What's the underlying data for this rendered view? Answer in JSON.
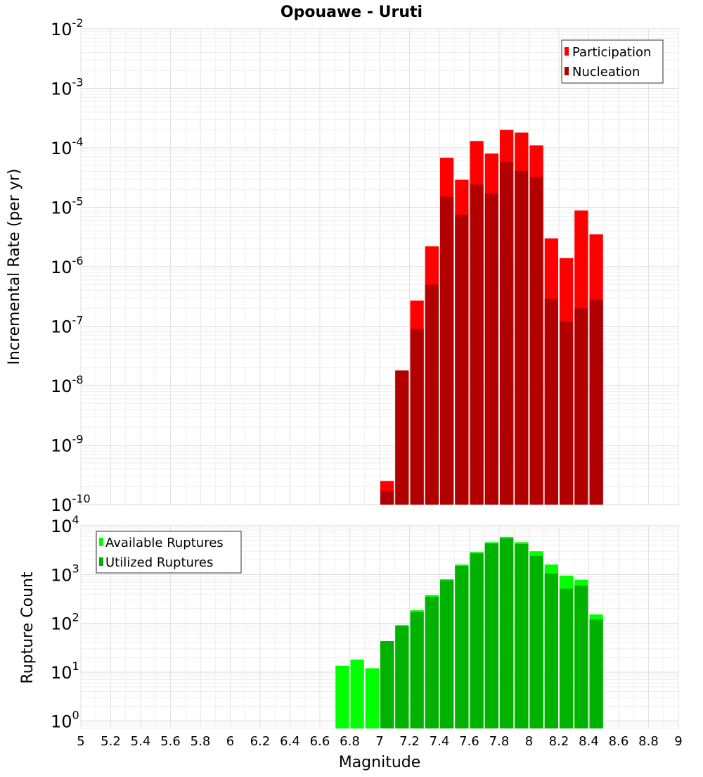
{
  "title": "Opouawe - Uruti",
  "colors": {
    "participation": "#ff0000",
    "nucleation": "#b20000",
    "available": "#00ff00",
    "utilized": "#00b200"
  },
  "chart_data": [
    {
      "type": "bar",
      "title": "Opouawe - Uruti",
      "xlabel": "",
      "ylabel": "Incremental Rate (per yr)",
      "yscale": "log",
      "ylim": [
        1e-10,
        0.01
      ],
      "xlim": [
        5,
        9
      ],
      "grid": true,
      "legend": "top-right",
      "ytick_labels": [
        {
          "base": "10",
          "exp": "-2"
        },
        {
          "base": "10",
          "exp": "-3"
        },
        {
          "base": "10",
          "exp": "-4"
        },
        {
          "base": "10",
          "exp": "-5"
        },
        {
          "base": "10",
          "exp": "-6"
        },
        {
          "base": "10",
          "exp": "-7"
        },
        {
          "base": "10",
          "exp": "-8"
        },
        {
          "base": "10",
          "exp": "-9"
        },
        {
          "base": "10",
          "exp": "-10"
        }
      ],
      "x": [
        7.05,
        7.15,
        7.25,
        7.35,
        7.45,
        7.55,
        7.65,
        7.75,
        7.85,
        7.95,
        8.05,
        8.15,
        8.25,
        8.35,
        8.45
      ],
      "series": [
        {
          "name": "Participation",
          "values": [
            2.5e-10,
            1.8e-08,
            2.7e-07,
            2.2e-06,
            6.8e-05,
            2.9e-05,
            0.00013,
            8e-05,
            0.0002,
            0.00018,
            0.00011,
            3e-06,
            1.4e-06,
            8.8e-06,
            3.5e-06
          ]
        },
        {
          "name": "Nucleation",
          "values": [
            1.7e-10,
            1.8e-08,
            9e-08,
            5e-07,
            1.5e-05,
            7.5e-06,
            2.4e-05,
            1.7e-05,
            5.8e-05,
            4.1e-05,
            3.2e-05,
            2.9e-07,
            1.2e-07,
            2e-07,
            2.8e-07
          ]
        }
      ]
    },
    {
      "type": "bar",
      "xlabel": "Magnitude",
      "ylabel": "Rupture Count",
      "yscale": "log",
      "ylim": [
        0.7,
        10000
      ],
      "xlim": [
        5,
        9
      ],
      "grid": true,
      "legend": "top-left",
      "ytick_labels": [
        {
          "base": "10",
          "exp": "4"
        },
        {
          "base": "10",
          "exp": "3"
        },
        {
          "base": "10",
          "exp": "2"
        },
        {
          "base": "10",
          "exp": "1"
        },
        {
          "base": "10",
          "exp": "0"
        }
      ],
      "xtick_labels": [
        "5",
        "5.2",
        "5.4",
        "5.6",
        "5.8",
        "6",
        "6.2",
        "6.4",
        "6.6",
        "6.8",
        "7",
        "7.2",
        "7.4",
        "7.6",
        "7.8",
        "8",
        "8.2",
        "8.4",
        "8.6",
        "8.8",
        "9"
      ],
      "x": [
        6.75,
        6.85,
        6.95,
        7.05,
        7.15,
        7.25,
        7.35,
        7.45,
        7.55,
        7.65,
        7.75,
        7.85,
        7.95,
        8.05,
        8.15,
        8.25,
        8.35,
        8.45
      ],
      "series": [
        {
          "name": "Available Ruptures",
          "values": [
            13.5,
            18,
            12,
            43,
            92,
            185,
            380,
            800,
            1600,
            2900,
            4600,
            5900,
            4600,
            3000,
            1600,
            950,
            780,
            152
          ]
        },
        {
          "name": "Utilized Ruptures",
          "values": [
            0,
            0,
            0,
            43,
            88,
            170,
            350,
            760,
            1500,
            2700,
            4300,
            5500,
            4200,
            2400,
            1050,
            510,
            590,
            120
          ]
        }
      ]
    }
  ]
}
